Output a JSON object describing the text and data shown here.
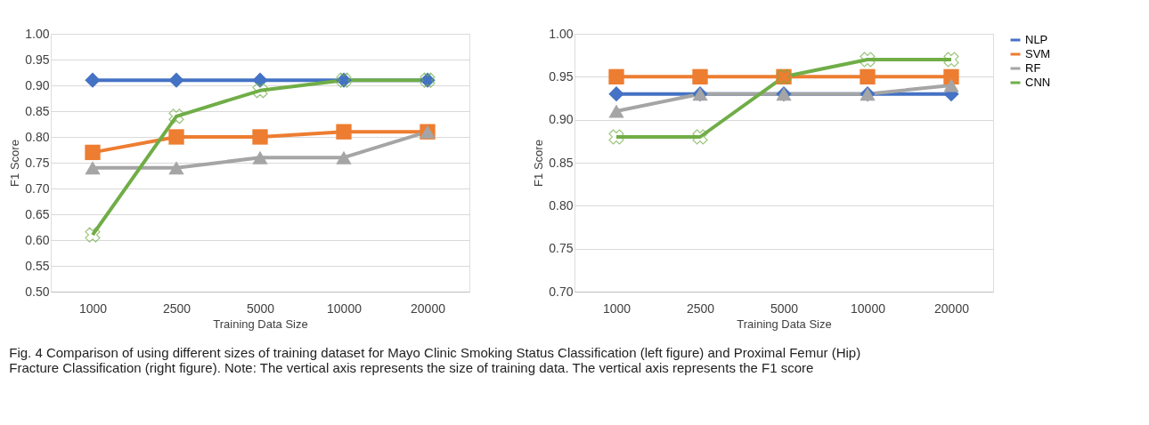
{
  "chart_data": [
    {
      "type": "line",
      "xlabel": "Training Data Size",
      "ylabel": "F1 Score",
      "categories": [
        "1000",
        "2500",
        "5000",
        "10000",
        "20000"
      ],
      "ylim": [
        0.5,
        1.0
      ],
      "yticks": [
        {
          "value": 0.5,
          "label": "0.50"
        },
        {
          "value": 0.55,
          "label": "0.55"
        },
        {
          "value": 0.6,
          "label": "0.60"
        },
        {
          "value": 0.65,
          "label": "0.65"
        },
        {
          "value": 0.7,
          "label": "0.70"
        },
        {
          "value": 0.75,
          "label": "0.75"
        },
        {
          "value": 0.8,
          "label": "0.80"
        },
        {
          "value": 0.85,
          "label": "0.85"
        },
        {
          "value": 0.9,
          "label": "0.90"
        },
        {
          "value": 0.95,
          "label": "0.95"
        },
        {
          "value": 1.0,
          "label": "1.00"
        }
      ],
      "grid": "y",
      "legend": false,
      "series": [
        {
          "color": "#4472c4",
          "marker": "diamond",
          "values": [
            0.91,
            0.91,
            0.91,
            0.91,
            0.91
          ]
        },
        {
          "color": "#ed7d31",
          "marker": "square",
          "values": [
            0.77,
            0.8,
            0.8,
            0.81,
            0.81
          ]
        },
        {
          "color": "#a5a5a5",
          "marker": "triangle",
          "values": [
            0.74,
            0.74,
            0.76,
            0.76,
            0.81
          ]
        },
        {
          "color": "#70ad47",
          "marker": "cross",
          "values": [
            0.61,
            0.84,
            0.89,
            0.91,
            0.91
          ]
        }
      ],
      "annotations": [
        "Fig. 4 Comparison of using different sizes of training dataset for Mayo Clinic Smoking Status Classification (left figure) and Proximal Femur (Hip) Fracture Classification (right figure). Note: The vertical axis represents the size of training data. The vertical axis represents the F1 score"
      ]
    },
    {
      "type": "line",
      "xlabel": "Training Data Size",
      "ylabel": "F1 Score",
      "categories": [
        "1000",
        "2500",
        "5000",
        "10000",
        "20000"
      ],
      "ylim": [
        0.7,
        1.0
      ],
      "yticks": [
        {
          "value": 0.7,
          "label": "0.70"
        },
        {
          "value": 0.75,
          "label": "0.75"
        },
        {
          "value": 0.8,
          "label": "0.80"
        },
        {
          "value": 0.85,
          "label": "0.85"
        },
        {
          "value": 0.9,
          "label": "0.90"
        },
        {
          "value": 0.95,
          "label": "0.95"
        },
        {
          "value": 1.0,
          "label": "1.00"
        }
      ],
      "grid": "y",
      "legend": "right",
      "series": [
        {
          "name": "NLP",
          "color": "#4472c4",
          "marker": "diamond",
          "values": [
            0.93,
            0.93,
            0.93,
            0.93,
            0.93
          ]
        },
        {
          "name": "SVM",
          "color": "#ed7d31",
          "marker": "square",
          "values": [
            0.95,
            0.95,
            0.95,
            0.95,
            0.95
          ]
        },
        {
          "name": "RF",
          "color": "#a5a5a5",
          "marker": "triangle",
          "values": [
            0.91,
            0.93,
            0.93,
            0.93,
            0.94
          ]
        },
        {
          "name": "CNN",
          "color": "#70ad47",
          "marker": "cross",
          "values": [
            0.88,
            0.88,
            0.95,
            0.97,
            0.97
          ]
        }
      ]
    }
  ]
}
